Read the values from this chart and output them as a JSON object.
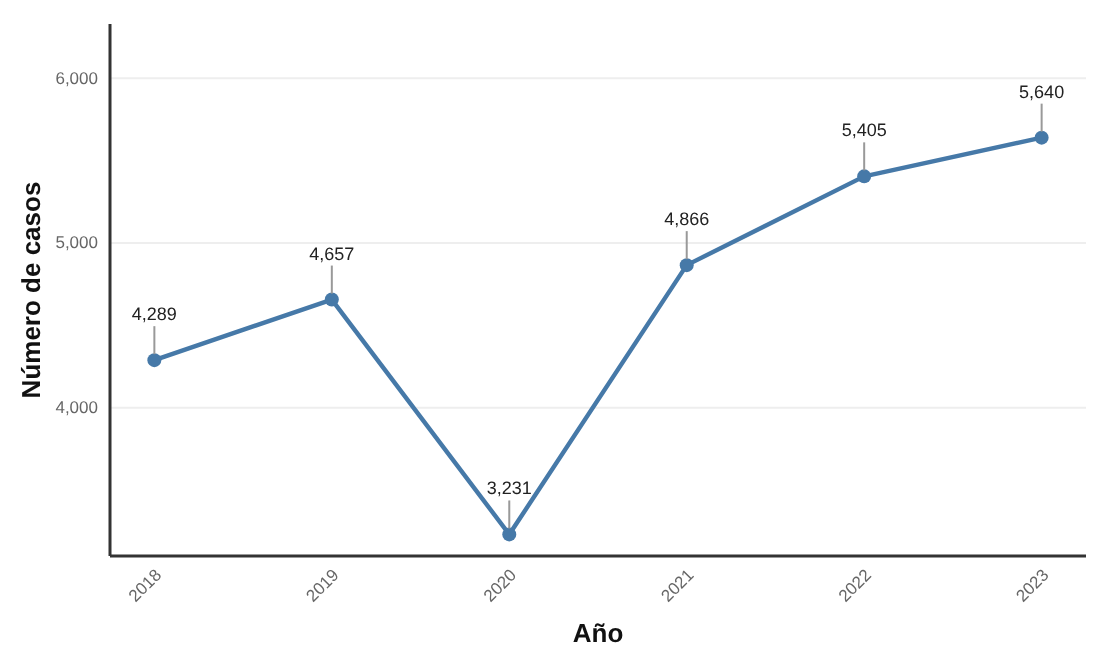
{
  "chart_data": {
    "type": "line",
    "xlabel": "Año",
    "ylabel": "Número de casos",
    "categories": [
      "2018",
      "2019",
      "2020",
      "2021",
      "2022",
      "2023"
    ],
    "series": [
      {
        "color": "#4679a8",
        "values": [
          4289,
          4657,
          3231,
          4866,
          5405,
          5640
        ]
      }
    ],
    "value_labels": [
      "4,289",
      "4,657",
      "3,231",
      "4,866",
      "5,405",
      "5,640"
    ],
    "ylim": [
      3100,
      6330
    ],
    "yticks": [
      {
        "value": 4000,
        "label": "4,000"
      },
      {
        "value": 5000,
        "label": "5,000"
      },
      {
        "value": 6000,
        "label": "6,000"
      }
    ],
    "grid": "y",
    "marker": "circle",
    "line_style": "solid"
  }
}
